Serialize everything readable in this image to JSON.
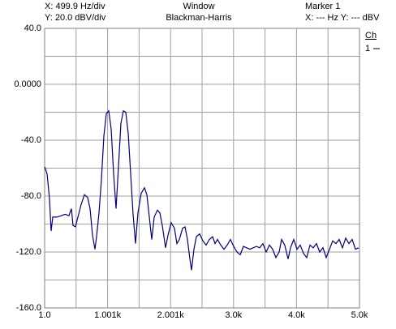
{
  "chart_data": {
    "type": "line",
    "x_scale_label": "X: 499.9 Hz/div",
    "y_scale_label": "Y: 20.0 dBV/div",
    "window_label": "Window",
    "window_name": "Blackman-Harris",
    "marker_label": "Marker 1",
    "marker_readout": "X: --- Hz Y: --- dBV",
    "legend_title": "Ch",
    "grid": true,
    "xlim": [
      1,
      5000
    ],
    "ylim": [
      -160,
      40
    ],
    "xticks": [
      {
        "value": 1,
        "label": "1.0"
      },
      {
        "value": 1000.8,
        "label": "1.001k"
      },
      {
        "value": 2000.6,
        "label": "2.001k"
      },
      {
        "value": 3000.4,
        "label": "3.0k"
      },
      {
        "value": 4000.2,
        "label": "4.0k"
      },
      {
        "value": 5000,
        "label": "5.0k"
      }
    ],
    "yticks": [
      {
        "value": 40,
        "label": "40.0"
      },
      {
        "value": 0,
        "label": "0.0000"
      },
      {
        "value": -40,
        "label": "-40.0"
      },
      {
        "value": -80,
        "label": "-80.0"
      },
      {
        "value": -120,
        "label": "-120.0"
      },
      {
        "value": -160,
        "label": "-160.0"
      }
    ],
    "series": [
      {
        "name": "1",
        "color": "#000080",
        "x": [
          1,
          40,
          78,
          104,
          130,
          194,
          272,
          323,
          388,
          426,
          452,
          491,
          529,
          581,
          632,
          684,
          722,
          761,
          800,
          826,
          864,
          903,
          941,
          980,
          1019,
          1058,
          1096,
          1135,
          1173,
          1212,
          1251,
          1290,
          1328,
          1367,
          1405,
          1444,
          1483,
          1534,
          1586,
          1624,
          1663,
          1702,
          1740,
          1792,
          1830,
          1869,
          1921,
          1959,
          2011,
          2062,
          2101,
          2140,
          2191,
          2230,
          2268,
          2307,
          2333,
          2372,
          2410,
          2462,
          2513,
          2565,
          2616,
          2668,
          2707,
          2745,
          2797,
          2848,
          2900,
          2951,
          3003,
          3054,
          3106,
          3157,
          3209,
          3261,
          3312,
          3364,
          3415,
          3467,
          3518,
          3570,
          3621,
          3673,
          3724,
          3763,
          3814,
          3866,
          3905,
          3956,
          4008,
          4059,
          4111,
          4163,
          4214,
          4265,
          4317,
          4369,
          4420,
          4472,
          4523,
          4575,
          4626,
          4678,
          4729,
          4781,
          4833,
          4884,
          4935,
          4987
        ],
        "values": [
          -59,
          -64,
          -82,
          -105,
          -95,
          -95,
          -94,
          -93,
          -94,
          -89,
          -101,
          -102,
          -95,
          -86,
          -79,
          -81,
          -89,
          -108,
          -118,
          -109,
          -92,
          -68,
          -37,
          -21,
          -19,
          -32,
          -64,
          -89,
          -59,
          -28,
          -19,
          -20,
          -35,
          -64,
          -93,
          -114,
          -92,
          -78,
          -74,
          -79,
          -95,
          -111,
          -95,
          -90,
          -92,
          -101,
          -117,
          -108,
          -99,
          -103,
          -114,
          -111,
          -103,
          -102,
          -111,
          -125,
          -133,
          -118,
          -109,
          -107,
          -112,
          -115,
          -111,
          -109,
          -114,
          -111,
          -115,
          -118,
          -115,
          -111,
          -116,
          -120,
          -122,
          -116,
          -117,
          -118,
          -117,
          -116,
          -117,
          -114,
          -120,
          -115,
          -118,
          -124,
          -120,
          -111,
          -115,
          -125,
          -117,
          -111,
          -118,
          -115,
          -121,
          -124,
          -115,
          -117,
          -114,
          -120,
          -117,
          -124,
          -118,
          -112,
          -114,
          -111,
          -117,
          -110,
          -114,
          -111,
          -118,
          -117
        ]
      }
    ]
  }
}
